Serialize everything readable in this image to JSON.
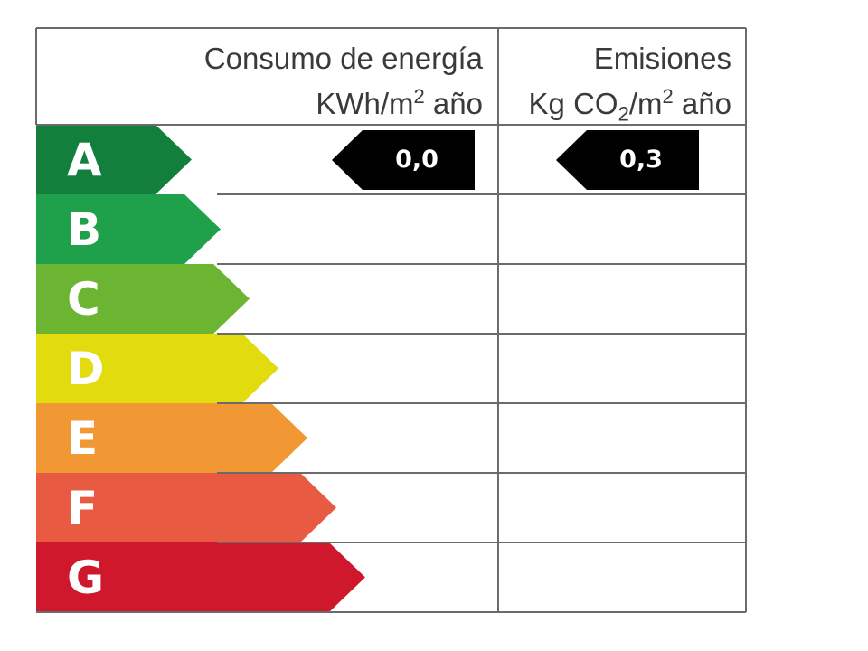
{
  "header": {
    "energy_line1": "Consumo de energía",
    "energy_line2_prefix": "KWh/m",
    "energy_line2_sup": "2",
    "energy_line2_suffix": " año",
    "emissions_line1": "Emisiones",
    "emissions_line2_a": "Kg CO",
    "emissions_line2_sub": "2",
    "emissions_line2_b": "/m",
    "emissions_line2_sup": "2",
    "emissions_line2_c": " año"
  },
  "ratings": [
    {
      "letter": "A",
      "color": "#137f3c"
    },
    {
      "letter": "B",
      "color": "#1fa04a"
    },
    {
      "letter": "C",
      "color": "#6cb532"
    },
    {
      "letter": "D",
      "color": "#e2dc0f"
    },
    {
      "letter": "E",
      "color": "#f19733"
    },
    {
      "letter": "F",
      "color": "#e85a41"
    },
    {
      "letter": "G",
      "color": "#d0182d"
    }
  ],
  "energy_indicator": {
    "value": "0,0",
    "rating": "A"
  },
  "emissions_indicator": {
    "value": "0,3",
    "rating": "A"
  },
  "colors": {
    "border": "#6b6b6b",
    "indicator": "#000000",
    "text": "#3a3a3a"
  }
}
